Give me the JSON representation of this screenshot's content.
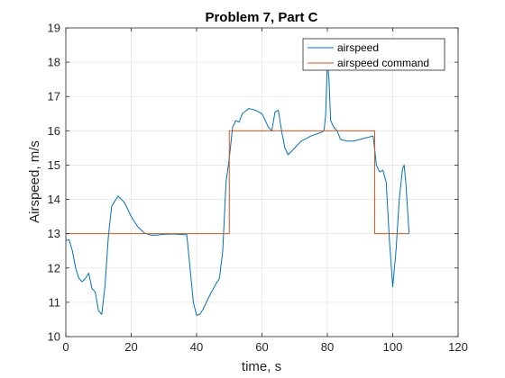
{
  "chart_data": {
    "type": "line",
    "title": "Problem 7, Part C",
    "xlabel": "time, s",
    "ylabel": "Airspeed, m/s",
    "xlim": [
      0,
      120
    ],
    "ylim": [
      10,
      19
    ],
    "xticks": [
      0,
      20,
      40,
      60,
      80,
      100,
      120
    ],
    "yticks": [
      10,
      11,
      12,
      13,
      14,
      15,
      16,
      17,
      18,
      19
    ],
    "grid": true,
    "legend_position": "top-right",
    "series": [
      {
        "name": "airspeed",
        "color": "#0072BD",
        "x": [
          0,
          1,
          2,
          3,
          4,
          5,
          6,
          7,
          8,
          9,
          10,
          11,
          12,
          13,
          14,
          16,
          18,
          20,
          22,
          24,
          26,
          28,
          30,
          33,
          36,
          37,
          38,
          39,
          40,
          41,
          42,
          44,
          46,
          47,
          48,
          49,
          50,
          51,
          52,
          53,
          54,
          56,
          58,
          60,
          62,
          63,
          64,
          65,
          66,
          67,
          68,
          70,
          72,
          75,
          78,
          79,
          79.5,
          80,
          80.5,
          81,
          82,
          83,
          84,
          86,
          88,
          90,
          92,
          94,
          94.5,
          95,
          96,
          97,
          98,
          99,
          100,
          101,
          102,
          103,
          103.5,
          104,
          105
        ],
        "y": [
          12.8,
          12.82,
          12.5,
          12.0,
          11.7,
          11.6,
          11.7,
          11.85,
          11.4,
          11.3,
          10.75,
          10.65,
          11.5,
          12.9,
          13.8,
          14.1,
          13.9,
          13.5,
          13.2,
          13.02,
          12.96,
          12.96,
          12.98,
          12.99,
          12.97,
          12.97,
          12.0,
          11.0,
          10.62,
          10.65,
          10.8,
          11.2,
          11.55,
          11.7,
          12.5,
          14.5,
          15.2,
          16.1,
          16.3,
          16.25,
          16.5,
          16.65,
          16.6,
          16.5,
          16.1,
          16.0,
          16.55,
          16.6,
          16.0,
          15.5,
          15.3,
          15.5,
          15.7,
          15.85,
          15.95,
          16.0,
          16.5,
          18.05,
          17.5,
          16.3,
          16.1,
          16.0,
          15.75,
          15.7,
          15.7,
          15.75,
          15.8,
          15.85,
          15.45,
          15.0,
          14.8,
          14.85,
          14.5,
          12.8,
          11.45,
          12.5,
          14.0,
          14.9,
          15.0,
          14.5,
          13.0
        ]
      },
      {
        "name": "airspeed command",
        "color": "#D95319",
        "x": [
          0,
          50,
          50,
          94.5,
          94.5,
          105
        ],
        "y": [
          13,
          13,
          16,
          16,
          13,
          13
        ]
      }
    ]
  }
}
